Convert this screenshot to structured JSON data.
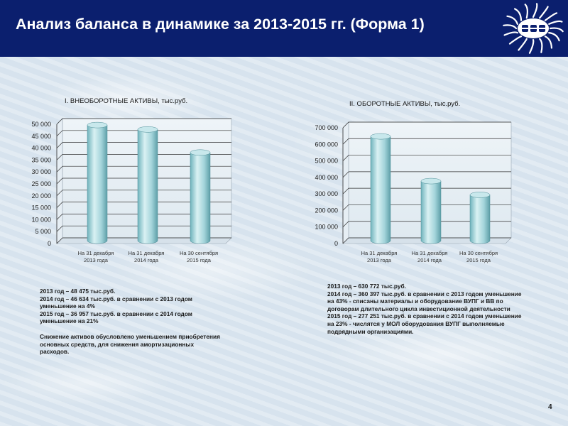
{
  "header": {
    "title": "Анализ баланса в динамике за 2013-2015 гг. (Форма 1)"
  },
  "colors": {
    "header_bg": "#0b1f6e",
    "bar": "#9fd0d6",
    "bar_dark": "#5aa3ad",
    "logo_bg": "#ffffff",
    "logo_fg": "#0b1f6e"
  },
  "logo_icon": "energy-company-emblem",
  "chart_data": [
    {
      "type": "bar",
      "title": "I. ВНЕОБОРОТНЫЕ АКТИВЫ, тыс.руб.",
      "categories": [
        [
          "На 31 декабря",
          "2013 года"
        ],
        [
          "На 31 декабря",
          "2014 года"
        ],
        [
          "На 30 сентября",
          "2015 года"
        ]
      ],
      "values": [
        48475,
        46634,
        36957
      ],
      "ylim": [
        0,
        50000
      ],
      "yticks": [
        "0",
        "5 000",
        "10 000",
        "15 000",
        "20 000",
        "25 000",
        "30 000",
        "35 000",
        "40 000",
        "45 000",
        "50 000"
      ],
      "grid": true,
      "style": "3d-cylinder"
    },
    {
      "type": "bar",
      "title": "II. ОБОРОТНЫЕ АКТИВЫ, тыс.руб.",
      "categories": [
        [
          "На 31 декабря",
          "2013 года"
        ],
        [
          "На 31 декабря",
          "2014 года"
        ],
        [
          "На 30 сентября",
          "2015 года"
        ]
      ],
      "values": [
        630772,
        360397,
        277251
      ],
      "ylim": [
        0,
        700000
      ],
      "yticks": [
        "0",
        "100 000",
        "200 000",
        "300 000",
        "400 000",
        "500 000",
        "600 000",
        "700 000"
      ],
      "grid": true,
      "style": "3d-cylinder"
    }
  ],
  "notes": {
    "left": [
      "2013 год – 48 475 тыс.руб.",
      "2014 год – 46 634 тыс.руб. в сравнении с 2013 годом уменьшение на 4%",
      "2015 год – 36 957 тыс.руб. в сравнении с 2014 годом уменьшение на 21%",
      "",
      "Снижение активов обусловлено уменьшением приобретения основных средств, для снижения амортизационных расходов."
    ],
    "right": [
      "2013 год – 630 772 тыс.руб.",
      "2014 год – 360 397 тыс.руб. в сравнении с 2013 годом уменьшение на 43% - списаны материалы и оборудование ВУПГ и ВВ по договорам длительного цикла инвестиционной деятельности",
      "2015 год – 277 251 тыс.руб. в сравнении с 2014 годом уменьшение на 23% - числятся у МОЛ оборудования ВУПГ выполняемые подрядными организациями."
    ]
  },
  "page_number": "4"
}
